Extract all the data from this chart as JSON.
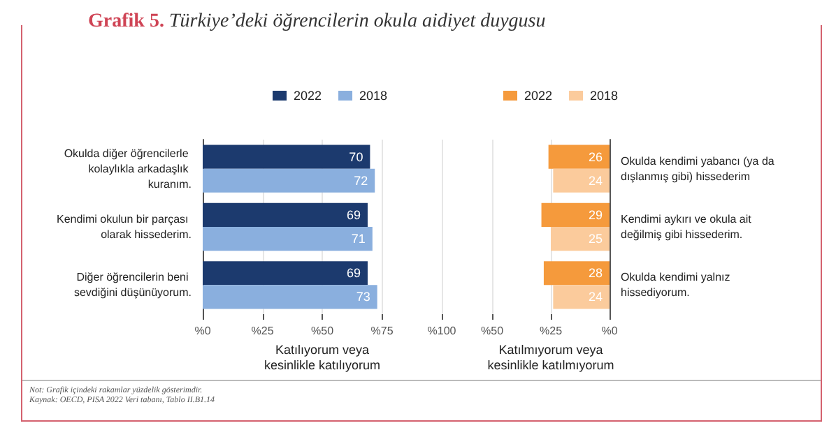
{
  "chart_data": [
    {
      "type": "bar",
      "orientation": "horizontal",
      "title": "Grafik 5. Türkiye’deki öğrencilerin okula aidiyet duygusu",
      "xlabel": "Katılıyorum veya kesinlikle katılıyorum",
      "categories": [
        "Okulda diğer öğrencilerle kolaylıkla arkadaşlık kuranım.",
        "Kendimi okulun bir parçası olarak hissederim.",
        "Diğer öğrencilerin beni sevdiğini düşünüyorum."
      ],
      "series": [
        {
          "name": "2022",
          "color": "#1c3a6e",
          "values": [
            70,
            69,
            69
          ]
        },
        {
          "name": "2018",
          "color": "#8aafde",
          "values": [
            72,
            71,
            73
          ]
        }
      ],
      "xlim": [
        0,
        100
      ],
      "xticks": [
        {
          "value": 0,
          "label": "%0"
        },
        {
          "value": 25,
          "label": "%25"
        },
        {
          "value": 50,
          "label": "%50"
        },
        {
          "value": 75,
          "label": "%75"
        },
        {
          "value": 100,
          "label": "%100"
        }
      ],
      "grid": "x",
      "legend": "top",
      "data_labels": true,
      "annotations": [
        "Not: Grafik içindeki rakamlar yüzdelik gösterimdir.",
        "Kaynak: OECD, PISA 2022 Veri tabanı, Tablo II.B1.14"
      ]
    },
    {
      "type": "bar",
      "orientation": "horizontal",
      "xlabel": "Katılmıyorum veya kesinlikle katılmıyorum",
      "categories": [
        "Okulda kendimi yabancı (ya da dışlanmış gibi) hissederim",
        "Kendimi aykırı ve okula ait değilmiş gibi hissederim.",
        "Okulda kendimi yalnız hissediyorum."
      ],
      "series": [
        {
          "name": "2022",
          "color": "#f59a3c",
          "values": [
            26,
            29,
            28
          ]
        },
        {
          "name": "2018",
          "color": "#fbcb9c",
          "values": [
            24,
            25,
            24
          ]
        }
      ],
      "xlim": [
        50,
        0
      ],
      "xticks": [
        {
          "value": 50,
          "label": "%50"
        },
        {
          "value": 25,
          "label": "%25"
        },
        {
          "value": 0,
          "label": "%0"
        }
      ],
      "grid": "x",
      "legend": "top",
      "data_labels": true
    }
  ]
}
